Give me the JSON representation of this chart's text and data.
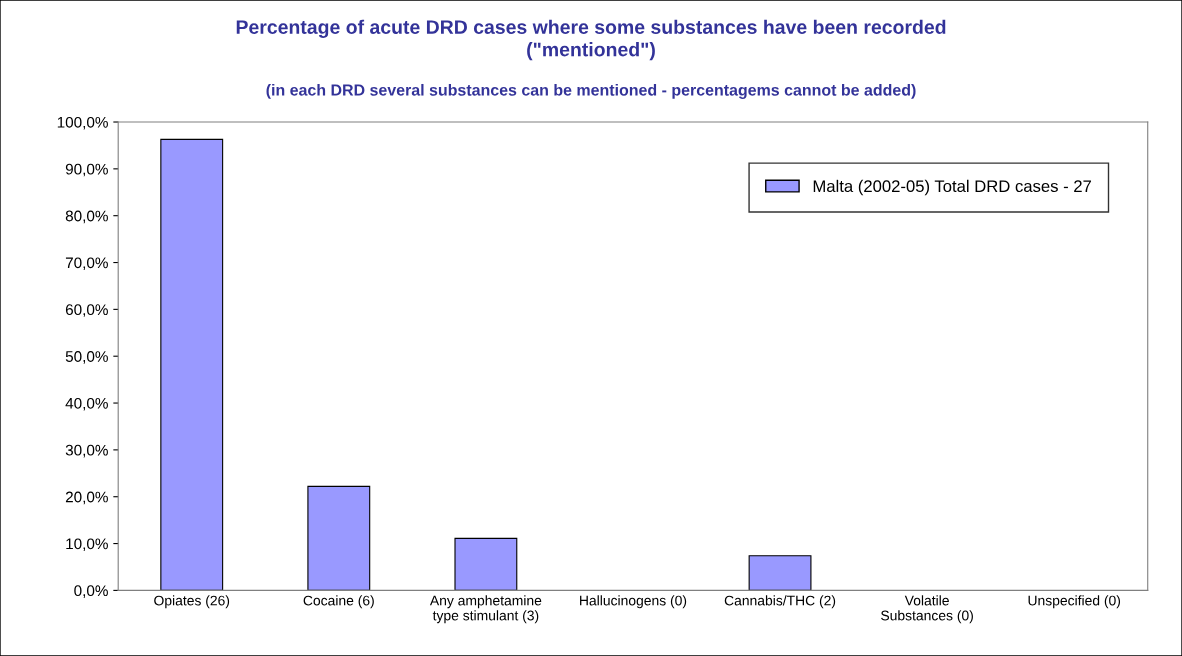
{
  "chart_data": {
    "type": "bar",
    "title": "Percentage of acute DRD cases where some substances have been recorded\n(\"mentioned\")",
    "subtitle": "(in each DRD several substances can be mentioned - percentagems cannot be added)",
    "categories": [
      "Opiates (26)",
      "Cocaine (6)",
      "Any amphetamine\ntype stimulant (3)",
      "Hallucinogens (0)",
      "Cannabis/THC (2)",
      "Volatile\nSubstances (0)",
      "Unspecified (0)"
    ],
    "series": [
      {
        "name": "Malta (2002-05) Total DRD cases - 27",
        "color": "#9999ff",
        "values": [
          96.3,
          22.2,
          11.1,
          0,
          7.4,
          0,
          0
        ]
      }
    ],
    "ylim": [
      0,
      100
    ],
    "yticks": [
      {
        "value": 0,
        "label": "0,0%"
      },
      {
        "value": 10,
        "label": "10,0%"
      },
      {
        "value": 20,
        "label": "20,0%"
      },
      {
        "value": 30,
        "label": "30,0%"
      },
      {
        "value": 40,
        "label": "40,0%"
      },
      {
        "value": 50,
        "label": "50,0%"
      },
      {
        "value": 60,
        "label": "60,0%"
      },
      {
        "value": 70,
        "label": "70,0%"
      },
      {
        "value": 80,
        "label": "80,0%"
      },
      {
        "value": 90,
        "label": "90,0%"
      },
      {
        "value": 100,
        "label": "100,0%"
      }
    ],
    "grid": false,
    "legend": "top right"
  }
}
